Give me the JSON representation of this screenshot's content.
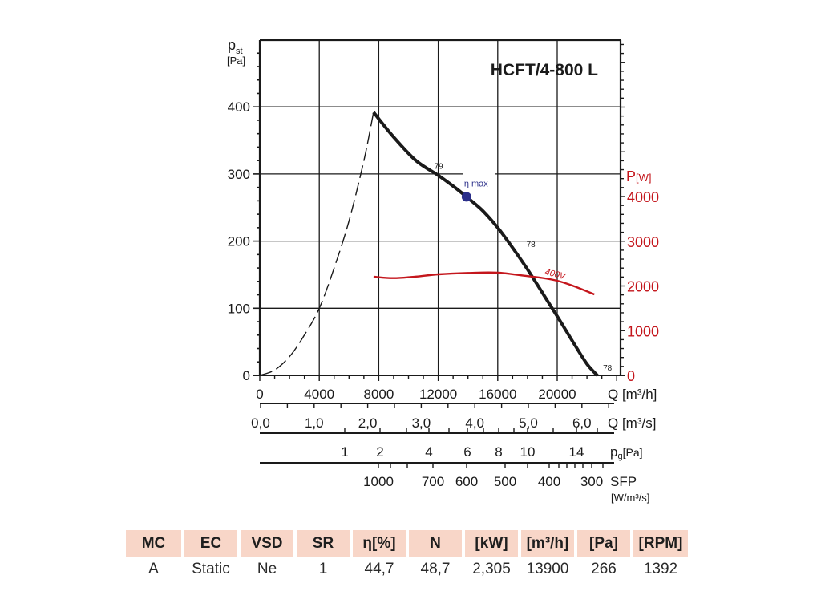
{
  "chart_data": {
    "type": "line",
    "title": "HCFT/4-800 L",
    "ylabel": "p",
    "ylabel_sub": "st",
    "ylabel_unit": "[Pa]",
    "ylim": [
      0,
      500
    ],
    "yticks": [
      0,
      100,
      200,
      300,
      400
    ],
    "y2label": "P",
    "y2label_unit": "[W]",
    "y2lim": [
      0,
      7500
    ],
    "y2ticks": [
      0,
      1000,
      2000,
      3000,
      4000
    ],
    "xlim": [
      0,
      24300
    ],
    "xticks": [
      0,
      4000,
      8000,
      12000,
      16000,
      20000
    ],
    "xlabel": "Q [m³/h]",
    "grid": true,
    "secondary_axes": [
      {
        "label": "Q [m³/s]",
        "ticks": [
          "0,0",
          "1,0",
          "2,0",
          "3,0",
          "4,0",
          "5,0",
          "6,0"
        ],
        "tick_values": [
          0,
          1,
          2,
          3,
          4,
          5,
          6
        ]
      },
      {
        "label_main": "p",
        "label_sub": "g",
        "label_unit": "[Pa]",
        "ticks": [
          "1",
          "2",
          "4",
          "6",
          "8",
          "10",
          "14"
        ],
        "tick_values": [
          1,
          2,
          4,
          6,
          8,
          10,
          14
        ]
      },
      {
        "label": "SFP",
        "label_unit": "[W/m³/s]",
        "ticks": [
          "1000",
          "700",
          "600",
          "500",
          "400",
          "300"
        ],
        "tick_values": [
          1000,
          700,
          600,
          500,
          400,
          300
        ]
      }
    ],
    "series": [
      {
        "name": "pressure-unstable",
        "style": "dashed",
        "color": "#1a1a1a",
        "x": [
          0,
          1000,
          2000,
          3000,
          4000,
          5000,
          6000,
          7000,
          7650
        ],
        "y": [
          0,
          8,
          28,
          60,
          100,
          160,
          230,
          320,
          392
        ]
      },
      {
        "name": "pressure",
        "style": "solid",
        "color": "#1a1a1a",
        "x": [
          7650,
          9000,
          10500,
          12000,
          13000,
          13900,
          15000,
          16000,
          17000,
          18000,
          19000,
          20000,
          21000,
          22000,
          22700
        ],
        "y": [
          392,
          355,
          320,
          298,
          282,
          266,
          245,
          220,
          190,
          158,
          123,
          88,
          52,
          17,
          0
        ]
      },
      {
        "name": "400V",
        "style": "solid",
        "color": "#c4161c",
        "axis": "y2",
        "x": [
          7650,
          9000,
          10500,
          12000,
          14000,
          16000,
          18000,
          19000,
          20000,
          21000,
          22500
        ],
        "y": [
          2206,
          2175,
          2210,
          2260,
          2290,
          2296,
          2220,
          2180,
          2117,
          2010,
          1812
        ]
      }
    ],
    "annotations": [
      {
        "text": "79",
        "x": 12000,
        "y": 298
      },
      {
        "text": "η max",
        "x": 13900,
        "y": 266,
        "marker": true,
        "color": "#2b2f8a"
      },
      {
        "text": "78",
        "x": 18200,
        "y": 160
      },
      {
        "text": "78",
        "x": 22700,
        "y": 0
      },
      {
        "text": "400V",
        "x": 21300,
        "y": 2080,
        "color": "#c4161c"
      }
    ]
  },
  "table": {
    "headers": [
      "MC",
      "EC",
      "VSD",
      "SR",
      "η[%]",
      "N",
      "[kW]",
      "[m³/h]",
      "[Pa]",
      "[RPM]"
    ],
    "values": [
      "A",
      "Static",
      "Ne",
      "1",
      "44,7",
      "48,7",
      "2,305",
      "13900",
      "266",
      "1392"
    ]
  },
  "colors": {
    "axis": "#1a1a1a",
    "power": "#c4161c",
    "marker": "#2b2f8a",
    "header_bg": "#f8d6c8"
  }
}
